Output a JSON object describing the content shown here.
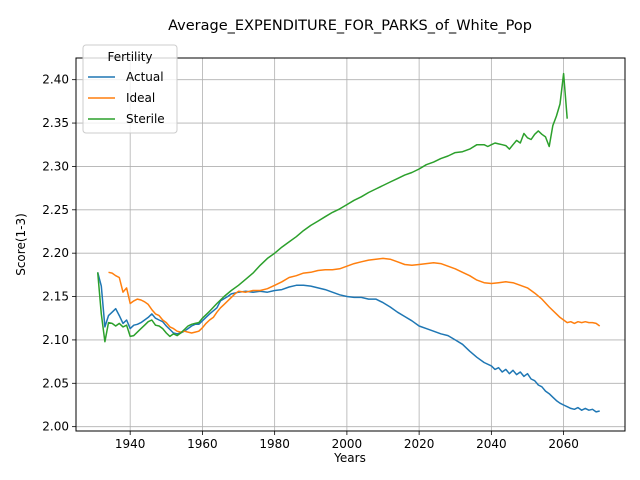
{
  "chart_data": {
    "type": "line",
    "title": "Average_EXPENDITURE_FOR_PARKS_of_White_Pop",
    "xlabel": "Years",
    "ylabel": "Score(1-3)",
    "xlim": [
      1925,
      2077
    ],
    "ylim": [
      1.995,
      2.425
    ],
    "xticks": [
      1940,
      1960,
      1980,
      2000,
      2020,
      2040,
      2060
    ],
    "yticks": [
      2.0,
      2.05,
      2.1,
      2.15,
      2.2,
      2.25,
      2.3,
      2.35,
      2.4
    ],
    "xtick_labels": [
      "1940",
      "1960",
      "1980",
      "2000",
      "2020",
      "2040",
      "2060"
    ],
    "ytick_labels": [
      "2.00",
      "2.05",
      "2.10",
      "2.15",
      "2.20",
      "2.25",
      "2.30",
      "2.35",
      "2.40"
    ],
    "grid": true,
    "legend": {
      "title": "Fertility",
      "position": "upper-left"
    },
    "series": [
      {
        "name": "Actual",
        "color": "#1f77b4",
        "points": [
          [
            1931,
            2.178
          ],
          [
            1932,
            2.162
          ],
          [
            1933,
            2.115
          ],
          [
            1934,
            2.128
          ],
          [
            1935,
            2.132
          ],
          [
            1936,
            2.136
          ],
          [
            1937,
            2.128
          ],
          [
            1938,
            2.119
          ],
          [
            1939,
            2.123
          ],
          [
            1940,
            2.113
          ],
          [
            1941,
            2.117
          ],
          [
            1942,
            2.118
          ],
          [
            1943,
            2.12
          ],
          [
            1944,
            2.123
          ],
          [
            1945,
            2.126
          ],
          [
            1946,
            2.13
          ],
          [
            1947,
            2.125
          ],
          [
            1948,
            2.123
          ],
          [
            1949,
            2.121
          ],
          [
            1950,
            2.116
          ],
          [
            1951,
            2.112
          ],
          [
            1952,
            2.108
          ],
          [
            1953,
            2.107
          ],
          [
            1954,
            2.108
          ],
          [
            1955,
            2.11
          ],
          [
            1956,
            2.113
          ],
          [
            1957,
            2.116
          ],
          [
            1958,
            2.118
          ],
          [
            1959,
            2.118
          ],
          [
            1960,
            2.122
          ],
          [
            1962,
            2.13
          ],
          [
            1964,
            2.137
          ],
          [
            1965,
            2.145
          ],
          [
            1967,
            2.15
          ],
          [
            1968,
            2.153
          ],
          [
            1970,
            2.155
          ],
          [
            1972,
            2.156
          ],
          [
            1974,
            2.155
          ],
          [
            1976,
            2.156
          ],
          [
            1978,
            2.155
          ],
          [
            1980,
            2.157
          ],
          [
            1982,
            2.158
          ],
          [
            1984,
            2.161
          ],
          [
            1986,
            2.163
          ],
          [
            1988,
            2.163
          ],
          [
            1990,
            2.162
          ],
          [
            1992,
            2.16
          ],
          [
            1994,
            2.158
          ],
          [
            1996,
            2.155
          ],
          [
            1998,
            2.152
          ],
          [
            2000,
            2.15
          ],
          [
            2002,
            2.149
          ],
          [
            2004,
            2.149
          ],
          [
            2006,
            2.147
          ],
          [
            2008,
            2.147
          ],
          [
            2010,
            2.143
          ],
          [
            2012,
            2.138
          ],
          [
            2014,
            2.132
          ],
          [
            2016,
            2.127
          ],
          [
            2018,
            2.122
          ],
          [
            2020,
            2.116
          ],
          [
            2022,
            2.113
          ],
          [
            2024,
            2.11
          ],
          [
            2026,
            2.107
          ],
          [
            2028,
            2.105
          ],
          [
            2030,
            2.1
          ],
          [
            2032,
            2.095
          ],
          [
            2034,
            2.087
          ],
          [
            2036,
            2.08
          ],
          [
            2038,
            2.074
          ],
          [
            2040,
            2.07
          ],
          [
            2041,
            2.066
          ],
          [
            2042,
            2.068
          ],
          [
            2043,
            2.063
          ],
          [
            2044,
            2.066
          ],
          [
            2045,
            2.061
          ],
          [
            2046,
            2.065
          ],
          [
            2047,
            2.06
          ],
          [
            2048,
            2.063
          ],
          [
            2049,
            2.058
          ],
          [
            2050,
            2.061
          ],
          [
            2051,
            2.055
          ],
          [
            2052,
            2.053
          ],
          [
            2053,
            2.048
          ],
          [
            2054,
            2.046
          ],
          [
            2055,
            2.041
          ],
          [
            2056,
            2.038
          ],
          [
            2057,
            2.034
          ],
          [
            2058,
            2.03
          ],
          [
            2059,
            2.027
          ],
          [
            2060,
            2.025
          ],
          [
            2061,
            2.023
          ],
          [
            2062,
            2.021
          ],
          [
            2063,
            2.02
          ],
          [
            2064,
            2.022
          ],
          [
            2065,
            2.019
          ],
          [
            2066,
            2.021
          ],
          [
            2067,
            2.019
          ],
          [
            2068,
            2.02
          ],
          [
            2069,
            2.017
          ],
          [
            2070,
            2.018
          ]
        ]
      },
      {
        "name": "Ideal",
        "color": "#ff7f0e",
        "points": [
          [
            1934,
            2.178
          ],
          [
            1935,
            2.177
          ],
          [
            1936,
            2.174
          ],
          [
            1937,
            2.172
          ],
          [
            1938,
            2.155
          ],
          [
            1939,
            2.16
          ],
          [
            1940,
            2.142
          ],
          [
            1941,
            2.145
          ],
          [
            1942,
            2.147
          ],
          [
            1943,
            2.146
          ],
          [
            1944,
            2.144
          ],
          [
            1945,
            2.141
          ],
          [
            1946,
            2.135
          ],
          [
            1947,
            2.13
          ],
          [
            1948,
            2.128
          ],
          [
            1949,
            2.123
          ],
          [
            1950,
            2.12
          ],
          [
            1951,
            2.115
          ],
          [
            1952,
            2.113
          ],
          [
            1953,
            2.11
          ],
          [
            1954,
            2.109
          ],
          [
            1955,
            2.11
          ],
          [
            1956,
            2.109
          ],
          [
            1957,
            2.108
          ],
          [
            1958,
            2.109
          ],
          [
            1959,
            2.11
          ],
          [
            1960,
            2.114
          ],
          [
            1961,
            2.119
          ],
          [
            1962,
            2.123
          ],
          [
            1963,
            2.126
          ],
          [
            1964,
            2.132
          ],
          [
            1965,
            2.137
          ],
          [
            1966,
            2.141
          ],
          [
            1967,
            2.145
          ],
          [
            1968,
            2.149
          ],
          [
            1969,
            2.153
          ],
          [
            1970,
            2.156
          ],
          [
            1972,
            2.155
          ],
          [
            1974,
            2.157
          ],
          [
            1976,
            2.157
          ],
          [
            1978,
            2.159
          ],
          [
            1980,
            2.163
          ],
          [
            1982,
            2.167
          ],
          [
            1984,
            2.172
          ],
          [
            1986,
            2.174
          ],
          [
            1988,
            2.177
          ],
          [
            1990,
            2.178
          ],
          [
            1992,
            2.18
          ],
          [
            1994,
            2.181
          ],
          [
            1996,
            2.181
          ],
          [
            1998,
            2.182
          ],
          [
            2000,
            2.185
          ],
          [
            2002,
            2.188
          ],
          [
            2004,
            2.19
          ],
          [
            2006,
            2.192
          ],
          [
            2008,
            2.193
          ],
          [
            2010,
            2.194
          ],
          [
            2012,
            2.193
          ],
          [
            2014,
            2.19
          ],
          [
            2016,
            2.187
          ],
          [
            2018,
            2.186
          ],
          [
            2020,
            2.187
          ],
          [
            2022,
            2.188
          ],
          [
            2024,
            2.189
          ],
          [
            2026,
            2.188
          ],
          [
            2028,
            2.185
          ],
          [
            2030,
            2.182
          ],
          [
            2032,
            2.178
          ],
          [
            2034,
            2.174
          ],
          [
            2036,
            2.169
          ],
          [
            2038,
            2.166
          ],
          [
            2040,
            2.165
          ],
          [
            2042,
            2.166
          ],
          [
            2044,
            2.167
          ],
          [
            2046,
            2.166
          ],
          [
            2048,
            2.163
          ],
          [
            2050,
            2.16
          ],
          [
            2052,
            2.154
          ],
          [
            2054,
            2.147
          ],
          [
            2056,
            2.138
          ],
          [
            2058,
            2.13
          ],
          [
            2059,
            2.126
          ],
          [
            2060,
            2.123
          ],
          [
            2061,
            2.12
          ],
          [
            2062,
            2.121
          ],
          [
            2063,
            2.119
          ],
          [
            2064,
            2.121
          ],
          [
            2065,
            2.12
          ],
          [
            2066,
            2.121
          ],
          [
            2067,
            2.12
          ],
          [
            2068,
            2.12
          ],
          [
            2069,
            2.119
          ],
          [
            2070,
            2.116
          ]
        ]
      },
      {
        "name": "Sterile",
        "color": "#2ca02c",
        "points": [
          [
            1931,
            2.178
          ],
          [
            1932,
            2.13
          ],
          [
            1933,
            2.098
          ],
          [
            1934,
            2.12
          ],
          [
            1935,
            2.119
          ],
          [
            1936,
            2.116
          ],
          [
            1937,
            2.119
          ],
          [
            1938,
            2.115
          ],
          [
            1939,
            2.117
          ],
          [
            1940,
            2.104
          ],
          [
            1941,
            2.105
          ],
          [
            1942,
            2.109
          ],
          [
            1943,
            2.113
          ],
          [
            1944,
            2.117
          ],
          [
            1945,
            2.121
          ],
          [
            1946,
            2.123
          ],
          [
            1947,
            2.117
          ],
          [
            1948,
            2.116
          ],
          [
            1949,
            2.113
          ],
          [
            1950,
            2.108
          ],
          [
            1951,
            2.104
          ],
          [
            1952,
            2.107
          ],
          [
            1953,
            2.105
          ],
          [
            1954,
            2.108
          ],
          [
            1955,
            2.112
          ],
          [
            1956,
            2.116
          ],
          [
            1957,
            2.118
          ],
          [
            1958,
            2.119
          ],
          [
            1959,
            2.12
          ],
          [
            1960,
            2.125
          ],
          [
            1962,
            2.133
          ],
          [
            1964,
            2.142
          ],
          [
            1966,
            2.15
          ],
          [
            1968,
            2.157
          ],
          [
            1970,
            2.163
          ],
          [
            1972,
            2.17
          ],
          [
            1974,
            2.177
          ],
          [
            1976,
            2.186
          ],
          [
            1978,
            2.194
          ],
          [
            1980,
            2.2
          ],
          [
            1982,
            2.207
          ],
          [
            1984,
            2.213
          ],
          [
            1986,
            2.219
          ],
          [
            1988,
            2.226
          ],
          [
            1990,
            2.232
          ],
          [
            1992,
            2.237
          ],
          [
            1994,
            2.242
          ],
          [
            1996,
            2.247
          ],
          [
            1998,
            2.251
          ],
          [
            2000,
            2.256
          ],
          [
            2002,
            2.261
          ],
          [
            2004,
            2.265
          ],
          [
            2006,
            2.27
          ],
          [
            2008,
            2.274
          ],
          [
            2010,
            2.278
          ],
          [
            2012,
            2.282
          ],
          [
            2014,
            2.286
          ],
          [
            2016,
            2.29
          ],
          [
            2018,
            2.293
          ],
          [
            2020,
            2.297
          ],
          [
            2022,
            2.302
          ],
          [
            2024,
            2.305
          ],
          [
            2026,
            2.309
          ],
          [
            2028,
            2.312
          ],
          [
            2030,
            2.316
          ],
          [
            2032,
            2.317
          ],
          [
            2034,
            2.32
          ],
          [
            2036,
            2.325
          ],
          [
            2038,
            2.325
          ],
          [
            2039,
            2.323
          ],
          [
            2040,
            2.325
          ],
          [
            2041,
            2.327
          ],
          [
            2042,
            2.326
          ],
          [
            2043,
            2.325
          ],
          [
            2044,
            2.324
          ],
          [
            2045,
            2.32
          ],
          [
            2046,
            2.325
          ],
          [
            2047,
            2.33
          ],
          [
            2048,
            2.327
          ],
          [
            2049,
            2.338
          ],
          [
            2050,
            2.333
          ],
          [
            2051,
            2.331
          ],
          [
            2052,
            2.337
          ],
          [
            2053,
            2.341
          ],
          [
            2054,
            2.337
          ],
          [
            2055,
            2.334
          ],
          [
            2056,
            2.323
          ],
          [
            2057,
            2.347
          ],
          [
            2058,
            2.358
          ],
          [
            2059,
            2.372
          ],
          [
            2060,
            2.407
          ],
          [
            2061,
            2.355
          ]
        ]
      }
    ]
  }
}
